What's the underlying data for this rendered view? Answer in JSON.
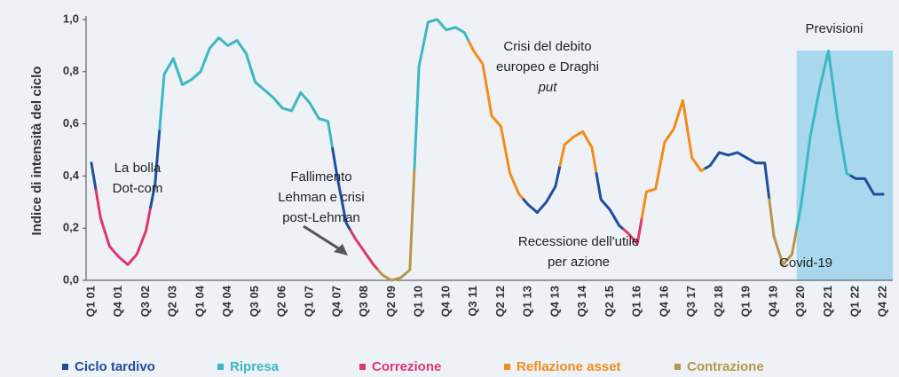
{
  "chart_data": {
    "type": "line",
    "y_axis_label": "Indice di intensità del ciclo",
    "categories": [
      "Q1 01",
      null,
      null,
      "Q4 01",
      null,
      null,
      "Q3 02",
      null,
      null,
      "Q2 03",
      null,
      null,
      "Q1 04",
      null,
      null,
      "Q4 04",
      null,
      null,
      "Q3 05",
      null,
      null,
      "Q2 06",
      null,
      null,
      "Q1 07",
      null,
      null,
      "Q4 07",
      null,
      null,
      "Q3 08",
      null,
      null,
      "Q2 09",
      null,
      null,
      "Q1 10",
      null,
      null,
      "Q4 10",
      null,
      null,
      "Q3 11",
      null,
      null,
      "Q2 12",
      null,
      null,
      "Q1 13",
      null,
      null,
      "Q4 13",
      null,
      null,
      "Q3 14",
      null,
      null,
      "Q2 15",
      null,
      null,
      "Q1 16",
      null,
      null,
      "Q4 16",
      null,
      null,
      "Q3 17",
      null,
      null,
      "Q2 18",
      null,
      null,
      "Q1 19",
      null,
      null,
      "Q4 19",
      null,
      null,
      "Q3 20",
      null,
      null,
      "Q2 21",
      null,
      null,
      "Q1 22",
      null,
      null,
      "Q4 22"
    ],
    "values": [
      0.45,
      0.24,
      0.13,
      0.09,
      0.06,
      0.1,
      0.19,
      0.37,
      0.79,
      0.85,
      0.75,
      0.77,
      0.8,
      0.89,
      0.93,
      0.9,
      0.92,
      0.87,
      0.76,
      0.73,
      0.7,
      0.66,
      0.65,
      0.72,
      0.68,
      0.62,
      0.61,
      0.4,
      0.22,
      0.16,
      0.11,
      0.06,
      0.02,
      0.0,
      0.01,
      0.04,
      0.82,
      0.99,
      1.0,
      0.96,
      0.97,
      0.95,
      0.88,
      0.83,
      0.63,
      0.59,
      0.41,
      0.33,
      0.29,
      0.26,
      0.3,
      0.36,
      0.52,
      0.55,
      0.57,
      0.51,
      0.31,
      0.27,
      0.21,
      0.18,
      0.14,
      0.34,
      0.35,
      0.53,
      0.58,
      0.69,
      0.47,
      0.42,
      0.44,
      0.49,
      0.48,
      0.49,
      0.47,
      0.45,
      0.45,
      0.17,
      0.06,
      0.1,
      0.29,
      0.55,
      0.73,
      0.88,
      0.62,
      0.41,
      0.39,
      0.39,
      0.33,
      0.33
    ],
    "phases": [
      0,
      2,
      2,
      2,
      2,
      2,
      2,
      0,
      1,
      1,
      1,
      1,
      1,
      1,
      1,
      1,
      1,
      1,
      1,
      1,
      1,
      1,
      1,
      1,
      1,
      1,
      1,
      0,
      0,
      2,
      2,
      2,
      4,
      4,
      4,
      4,
      1,
      1,
      1,
      1,
      1,
      1,
      3,
      3,
      3,
      3,
      3,
      3,
      0,
      0,
      0,
      0,
      3,
      3,
      3,
      3,
      0,
      0,
      0,
      2,
      2,
      3,
      3,
      3,
      3,
      3,
      3,
      3,
      0,
      0,
      0,
      0,
      0,
      0,
      0,
      4,
      4,
      4,
      1,
      1,
      1,
      1,
      1,
      1,
      0,
      0,
      0,
      0
    ],
    "legend": [
      {
        "name": "Ciclo tardivo",
        "color": "#1f4e9c"
      },
      {
        "name": "Ripresa",
        "color": "#3cb8c0"
      },
      {
        "name": "Correzione",
        "color": "#e0366b"
      },
      {
        "name": "Reflazione asset",
        "color": "#f28c1c"
      },
      {
        "name": "Contrazione",
        "color": "#b8964a"
      }
    ],
    "ylim": [
      0,
      1
    ],
    "yticks": [
      {
        "value": 0,
        "label": "0,0"
      },
      {
        "value": 0.2,
        "label": "0,2"
      },
      {
        "value": 0.4,
        "label": "0,4"
      },
      {
        "value": 0.6,
        "label": "0,6"
      },
      {
        "value": 0.8,
        "label": "0,8"
      },
      {
        "value": 1,
        "label": "1,0"
      }
    ],
    "forecast": {
      "label": "Previsioni",
      "start": "Q3 20"
    },
    "annotations": [
      {
        "lines": [
          "La bolla",
          "Dot-com"
        ]
      },
      {
        "lines": [
          "Fallimento",
          "Lehman e crisi",
          "post-Lehman"
        ]
      },
      {
        "lines": [
          "Crisi del debito",
          "europeo e Draghi",
          {
            "text": "put",
            "italic": true
          }
        ]
      },
      {
        "lines": [
          "Recessione dell'utile",
          "per azione"
        ]
      },
      {
        "lines": [
          "Covid-19"
        ]
      }
    ]
  }
}
